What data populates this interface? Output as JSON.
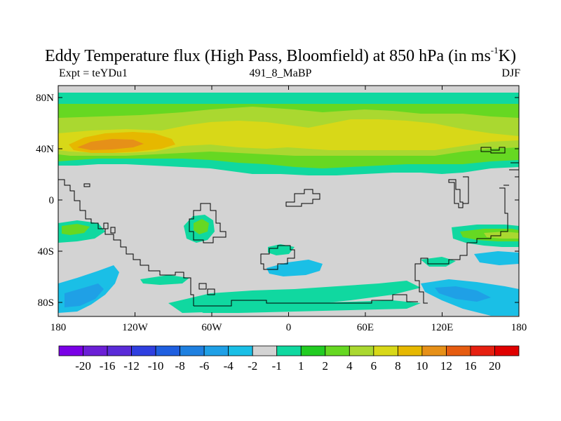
{
  "title": {
    "main": "Eddy Temperature flux (High Pass, Bloomfield) at 850 hPa (in ms",
    "superscript": "-1",
    "tail": "K)"
  },
  "subtitle": {
    "left": "Expt = teYDu1",
    "center": "491_8_MaBP",
    "right": "DJF"
  },
  "axes": {
    "lat_ticks": [
      "80N",
      "40N",
      "0",
      "40S",
      "80S"
    ],
    "lon_ticks": [
      "180",
      "120W",
      "60W",
      "0",
      "60E",
      "120E",
      "180"
    ]
  },
  "colorbar": {
    "labels": [
      "-20",
      "-16",
      "-12",
      "-10",
      "-8",
      "-6",
      "-4",
      "-2",
      "-1",
      "1",
      "2",
      "4",
      "6",
      "8",
      "10",
      "12",
      "16",
      "20"
    ],
    "colors": [
      "#7a00e6",
      "#6b1fd6",
      "#5a2bd8",
      "#2f3fe0",
      "#1f5fe0",
      "#1f80e0",
      "#1fa0e6",
      "#1abfe6",
      "#d3d3d3",
      "#10d8a0",
      "#22cc22",
      "#66d822",
      "#aad830",
      "#d8d818",
      "#e6b800",
      "#e69018",
      "#e65c10",
      "#e62010",
      "#e00000"
    ]
  },
  "map_colors": {
    "background": "#d3d3d3",
    "band_outer": "#10d8a0",
    "band_mid": "#66d822",
    "band_inner": "#aad830",
    "band_core": "#d8d818",
    "hot": "#e6b800",
    "hotter": "#e69018",
    "cool": "#1abfe6",
    "coolest": "#1fa0e6"
  }
}
